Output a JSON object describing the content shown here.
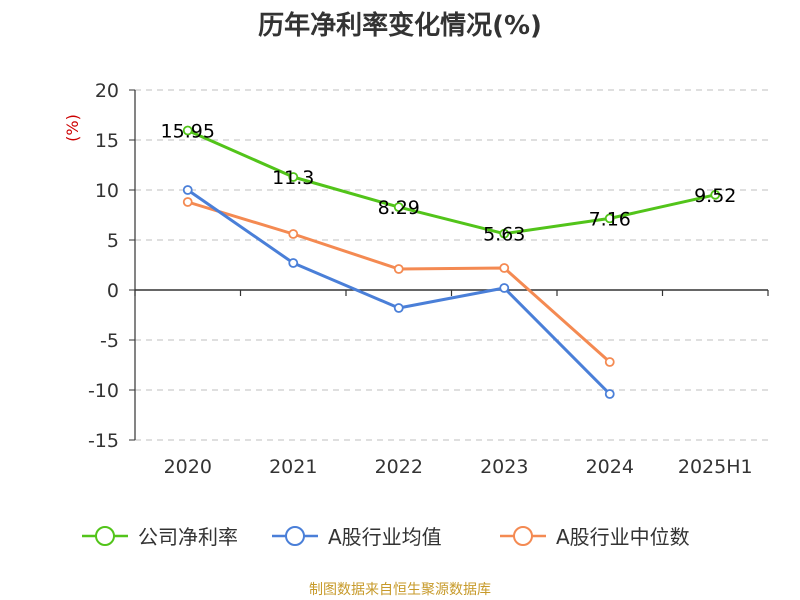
{
  "chart_data": {
    "type": "line",
    "title": "历年净利率变化情况(%)",
    "ylabel": "(%)",
    "xlabel": "",
    "categories": [
      "2020",
      "2021",
      "2022",
      "2023",
      "2024",
      "2025H1"
    ],
    "ylim": [
      -15,
      20
    ],
    "yticks": [
      20,
      15,
      10,
      5,
      0,
      -5,
      -10,
      -15
    ],
    "grid": true,
    "legend_position": "bottom",
    "series": [
      {
        "name": "公司净利率",
        "color": "#52c41a",
        "values": [
          15.95,
          11.3,
          8.29,
          5.63,
          7.16,
          9.52
        ],
        "labels": [
          "15.95",
          "11.3",
          "8.29",
          "5.63",
          "7.16",
          "9.52"
        ]
      },
      {
        "name": "A股行业均值",
        "color": "#4a7fd8",
        "values": [
          10.0,
          2.7,
          -1.8,
          0.2,
          -10.4,
          null
        ]
      },
      {
        "name": "A股行业中位数",
        "color": "#f48a52",
        "values": [
          8.8,
          5.6,
          2.1,
          2.2,
          -7.2,
          null
        ]
      }
    ],
    "source": "制图数据来自恒生聚源数据库"
  }
}
